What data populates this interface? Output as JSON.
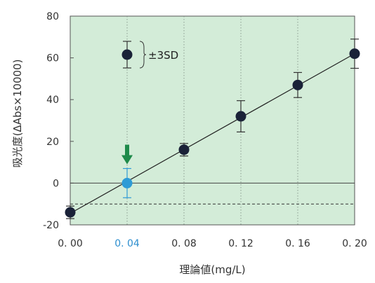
{
  "chart_data": {
    "type": "scatter",
    "xlabel": "理論値(mg/L)",
    "ylabel": "吸光度(ΔAbs×10000)",
    "xlim": [
      0,
      0.2
    ],
    "ylim": [
      -20,
      80
    ],
    "xticks": [
      {
        "value": 0.0,
        "label": "0. 00"
      },
      {
        "value": 0.04,
        "label": "0. 04"
      },
      {
        "value": 0.08,
        "label": "0. 08"
      },
      {
        "value": 0.12,
        "label": "0. 12"
      },
      {
        "value": 0.16,
        "label": "0. 16"
      },
      {
        "value": 0.2,
        "label": "0. 20"
      }
    ],
    "yticks": [
      {
        "value": 80,
        "label": "80"
      },
      {
        "value": 60,
        "label": "60"
      },
      {
        "value": 40,
        "label": "40"
      },
      {
        "value": 20,
        "label": "20"
      },
      {
        "value": 0,
        "label": "0"
      },
      {
        "value": -20,
        "label": "-20"
      }
    ],
    "points": [
      {
        "x": 0.0,
        "y": -14,
        "err": 3,
        "highlight": false
      },
      {
        "x": 0.04,
        "y": 0,
        "err": 7,
        "highlight": true
      },
      {
        "x": 0.08,
        "y": 16,
        "err": 3,
        "highlight": false
      },
      {
        "x": 0.12,
        "y": 32,
        "err": 7.5,
        "highlight": false
      },
      {
        "x": 0.16,
        "y": 47,
        "err": 6,
        "highlight": false
      },
      {
        "x": 0.2,
        "y": 62,
        "err": 7,
        "highlight": false
      }
    ],
    "fit_line": {
      "x": [
        0.0,
        0.2
      ],
      "y": [
        -14.5,
        62
      ]
    },
    "zero_line": 0,
    "dashed_line": -10,
    "legend_label": "±3SD",
    "colors": {
      "plot_bg": "#d3ecd8",
      "point": "#1a2238",
      "highlight_point": "#2e9bd6",
      "arrow": "#1e8a4a",
      "highlight_tick": "#2e8fcf",
      "axis_text": "#333333"
    }
  }
}
